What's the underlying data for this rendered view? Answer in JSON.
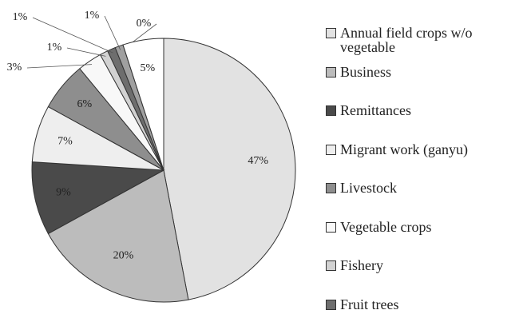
{
  "chart_data": {
    "type": "pie",
    "categories": [
      "Annual field crops w/o vegetable",
      "Business",
      "Remittances",
      "Migrant work (ganyu)",
      "Livestock",
      "Vegetable crops",
      "Fishery",
      "Fruit trees",
      null,
      null,
      null
    ],
    "values": [
      47,
      20,
      9,
      7,
      6,
      3,
      1,
      1,
      1,
      0,
      5
    ],
    "value_labels": [
      "47%",
      "20%",
      "9%",
      "7%",
      "6%",
      "3%",
      "1%",
      "1%",
      "1%",
      "0%",
      "5%"
    ],
    "colors": [
      "#e2e2e2",
      "#bcbcbc",
      "#4a4a4a",
      "#eeeeee",
      "#8e8e8e",
      "#f8f8f8",
      "#d2d2d2",
      "#6e6e6e",
      "#a0a0a0",
      "#222222",
      "#ffffff"
    ]
  }
}
